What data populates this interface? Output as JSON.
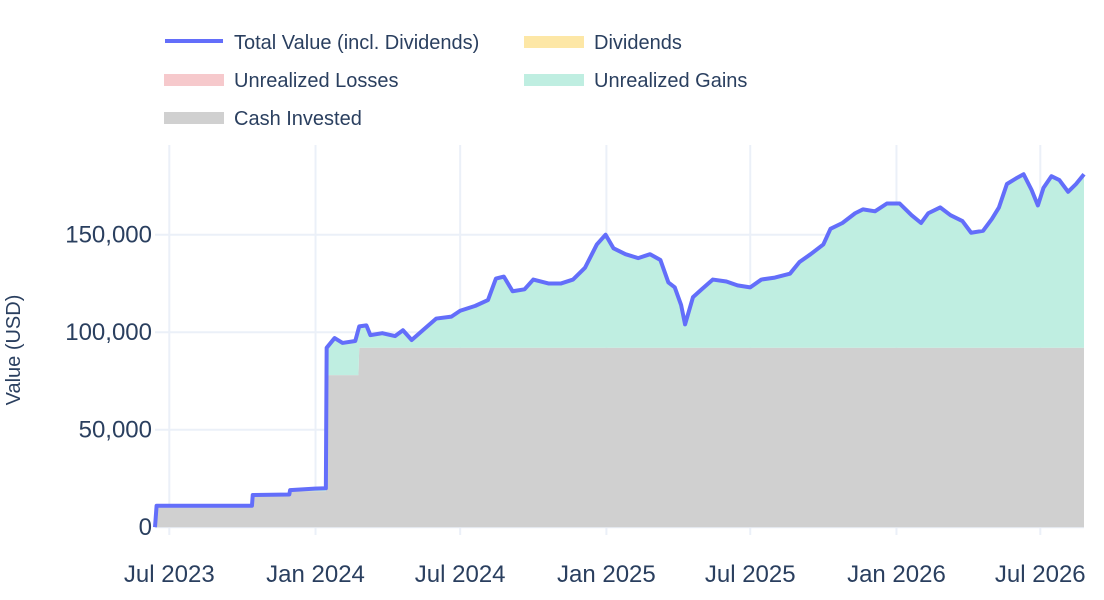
{
  "chart_data": {
    "type": "area",
    "xlabel": "",
    "ylabel": "Value (USD)",
    "x_range": [
      "2023-06-13",
      "2026-08-25"
    ],
    "ylim": [
      -4000,
      196000
    ],
    "x_ticks": [
      {
        "date": "2023-07-01",
        "label": "Jul 2023"
      },
      {
        "date": "2024-01-01",
        "label": "Jan 2024"
      },
      {
        "date": "2024-07-01",
        "label": "Jul 2024"
      },
      {
        "date": "2025-01-01",
        "label": "Jan 2025"
      },
      {
        "date": "2025-07-01",
        "label": "Jul 2025"
      },
      {
        "date": "2026-01-01",
        "label": "Jan 2026"
      },
      {
        "date": "2026-07-01",
        "label": "Jul 2026"
      }
    ],
    "y_ticks": [
      {
        "value": 0,
        "label": "0"
      },
      {
        "value": 50000,
        "label": "50,000"
      },
      {
        "value": 100000,
        "label": "100,000"
      },
      {
        "value": 150000,
        "label": "150,000"
      }
    ],
    "legend": {
      "placement": "top-left",
      "items": [
        {
          "label": "Total Value (incl. Dividends)",
          "kind": "line",
          "color": "#636efa"
        },
        {
          "label": "Dividends",
          "kind": "area",
          "color": "#fde7a6"
        },
        {
          "label": "Unrealized Losses",
          "kind": "area",
          "color": "#f6c9cc"
        },
        {
          "label": "Unrealized Gains",
          "kind": "area",
          "color": "#bfeee1"
        },
        {
          "label": "Cash Invested",
          "kind": "area",
          "color": "#d0d0d0"
        }
      ]
    },
    "series": [
      {
        "name": "Cash Invested",
        "color": "#d0d0d0",
        "step": true,
        "points": [
          [
            "2023-06-13",
            0
          ],
          [
            "2023-06-14",
            11000
          ],
          [
            "2023-10-13",
            11000
          ],
          [
            "2023-10-14",
            16000
          ],
          [
            "2023-11-29",
            16000
          ],
          [
            "2023-11-30",
            18500
          ],
          [
            "2024-01-14",
            18500
          ],
          [
            "2024-01-15",
            78000
          ],
          [
            "2024-02-24",
            78000
          ],
          [
            "2024-02-25",
            92000
          ],
          [
            "2026-08-25",
            92000
          ]
        ]
      },
      {
        "name": "Total Value (incl. Dividends)",
        "color": "#636efa",
        "points": [
          [
            "2023-06-13",
            0
          ],
          [
            "2023-06-15",
            11000
          ],
          [
            "2023-10-13",
            11000
          ],
          [
            "2023-10-14",
            16500
          ],
          [
            "2023-11-29",
            16800
          ],
          [
            "2023-11-30",
            19000
          ],
          [
            "2023-12-31",
            19800
          ],
          [
            "2024-01-14",
            20000
          ],
          [
            "2024-01-15",
            92000
          ],
          [
            "2024-01-25",
            97000
          ],
          [
            "2024-02-04",
            94500
          ],
          [
            "2024-02-20",
            95500
          ],
          [
            "2024-02-25",
            103000
          ],
          [
            "2024-03-05",
            103500
          ],
          [
            "2024-03-10",
            98500
          ],
          [
            "2024-03-25",
            99500
          ],
          [
            "2024-04-10",
            98000
          ],
          [
            "2024-04-20",
            101000
          ],
          [
            "2024-05-01",
            96000
          ],
          [
            "2024-05-15",
            101000
          ],
          [
            "2024-06-01",
            107000
          ],
          [
            "2024-06-20",
            108000
          ],
          [
            "2024-07-01",
            111000
          ],
          [
            "2024-07-20",
            113500
          ],
          [
            "2024-08-05",
            116500
          ],
          [
            "2024-08-15",
            127500
          ],
          [
            "2024-08-25",
            128500
          ],
          [
            "2024-09-05",
            121000
          ],
          [
            "2024-09-20",
            122000
          ],
          [
            "2024-10-01",
            127000
          ],
          [
            "2024-10-20",
            125000
          ],
          [
            "2024-11-05",
            125000
          ],
          [
            "2024-11-20",
            127000
          ],
          [
            "2024-12-05",
            133000
          ],
          [
            "2024-12-20",
            145000
          ],
          [
            "2024-12-31",
            150000
          ],
          [
            "2025-01-10",
            143000
          ],
          [
            "2025-01-25",
            140000
          ],
          [
            "2025-02-10",
            138000
          ],
          [
            "2025-02-25",
            140000
          ],
          [
            "2025-03-10",
            137000
          ],
          [
            "2025-03-20",
            125500
          ],
          [
            "2025-03-28",
            123000
          ],
          [
            "2025-04-05",
            114000
          ],
          [
            "2025-04-10",
            104000
          ],
          [
            "2025-04-20",
            118000
          ],
          [
            "2025-05-01",
            122000
          ],
          [
            "2025-05-15",
            127000
          ],
          [
            "2025-06-01",
            126000
          ],
          [
            "2025-06-15",
            124000
          ],
          [
            "2025-07-01",
            123000
          ],
          [
            "2025-07-15",
            127000
          ],
          [
            "2025-08-01",
            128000
          ],
          [
            "2025-08-20",
            130000
          ],
          [
            "2025-09-01",
            136000
          ],
          [
            "2025-09-15",
            140000
          ],
          [
            "2025-10-01",
            145000
          ],
          [
            "2025-10-10",
            153000
          ],
          [
            "2025-10-25",
            156000
          ],
          [
            "2025-11-10",
            161000
          ],
          [
            "2025-11-20",
            163000
          ],
          [
            "2025-12-05",
            162000
          ],
          [
            "2025-12-20",
            166000
          ],
          [
            "2026-01-05",
            166000
          ],
          [
            "2026-01-20",
            160000
          ],
          [
            "2026-02-01",
            156000
          ],
          [
            "2026-02-10",
            161000
          ],
          [
            "2026-02-25",
            164000
          ],
          [
            "2026-03-10",
            160000
          ],
          [
            "2026-03-25",
            157000
          ],
          [
            "2026-04-05",
            151000
          ],
          [
            "2026-04-20",
            152000
          ],
          [
            "2026-05-01",
            158000
          ],
          [
            "2026-05-10",
            164000
          ],
          [
            "2026-05-20",
            176000
          ],
          [
            "2026-06-01",
            179000
          ],
          [
            "2026-06-10",
            181000
          ],
          [
            "2026-06-20",
            173000
          ],
          [
            "2026-06-28",
            165000
          ],
          [
            "2026-07-05",
            174000
          ],
          [
            "2026-07-15",
            180000
          ],
          [
            "2026-07-25",
            178000
          ],
          [
            "2026-08-05",
            172000
          ],
          [
            "2026-08-15",
            176000
          ],
          [
            "2026-08-25",
            181000
          ]
        ]
      }
    ]
  }
}
